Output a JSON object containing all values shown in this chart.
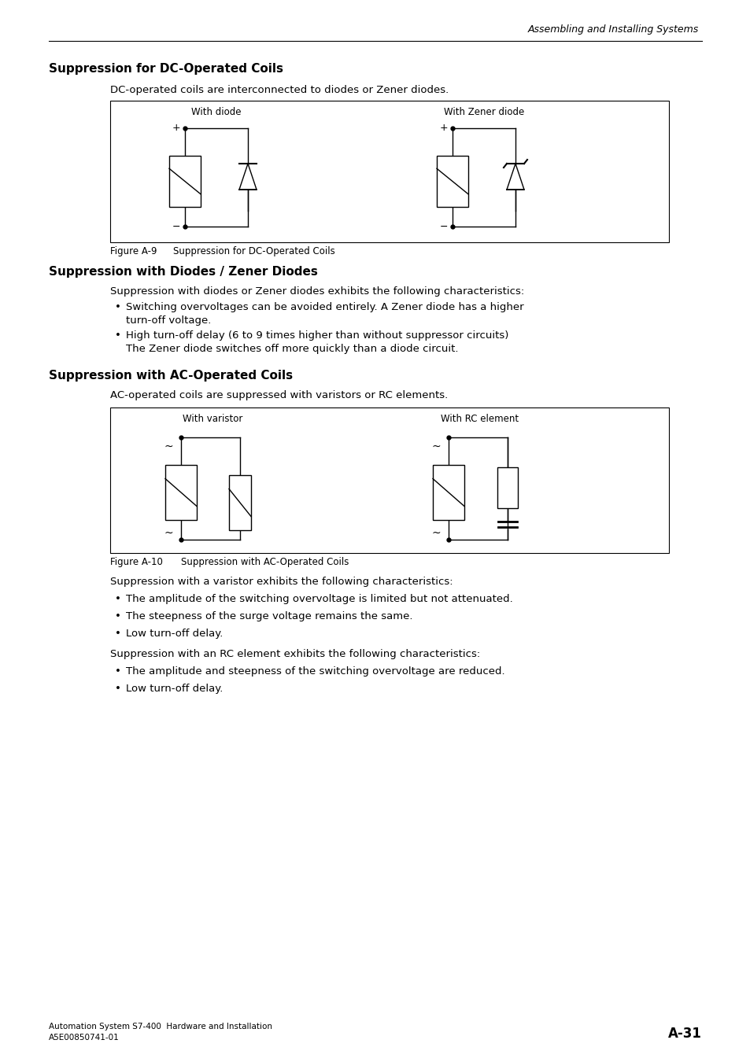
{
  "header_text": "Assembling and Installing Systems",
  "section1_title": "Suppression for DC-Operated Coils",
  "section1_intro": "DC-operated coils are interconnected to diodes or Zener diodes.",
  "fig9_label": "Figure A-9",
  "fig9_caption_text": "Suppression for DC-Operated Coils",
  "section2_title": "Suppression with Diodes / Zener Diodes",
  "section2_intro": "Suppression with diodes or Zener diodes exhibits the following characteristics:",
  "section2_bullet1_line1": "Switching overvoltages can be avoided entirely. A Zener diode has a higher",
  "section2_bullet1_line2": "turn-off voltage.",
  "section2_bullet2_line1": "High turn-off delay (6 to 9 times higher than without suppressor circuits)",
  "section2_bullet2_line2": "The Zener diode switches off more quickly than a diode circuit.",
  "section3_title": "Suppression with AC-Operated Coils",
  "section3_intro": "AC-operated coils are suppressed with varistors or RC elements.",
  "fig10_label": "Figure A-10",
  "fig10_caption_text": "Suppression with AC-Operated Coils",
  "varistor_intro": "Suppression with a varistor exhibits the following characteristics:",
  "varistor_bullet1": "The amplitude of the switching overvoltage is limited but not attenuated.",
  "varistor_bullet2": "The steepness of the surge voltage remains the same.",
  "varistor_bullet3": "Low turn-off delay.",
  "rc_intro": "Suppression with an RC element exhibits the following characteristics:",
  "rc_bullet1": "The amplitude and steepness of the switching overvoltage are reduced.",
  "rc_bullet2": "Low turn-off delay.",
  "footer_left1": "Automation System S7-400  Hardware and Installation",
  "footer_left2": "A5E00850741-01",
  "footer_right": "A-31"
}
